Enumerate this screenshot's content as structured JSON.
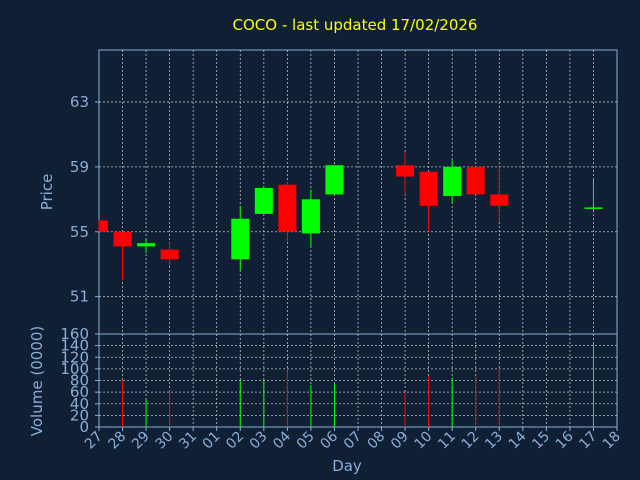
{
  "chart_data": [
    {
      "type": "candlestick",
      "title": "COCO - last updated 17/02/2026",
      "ylabel": "Price",
      "ylim": [
        48.7,
        66.2
      ],
      "yticks": [
        51,
        55,
        59,
        63
      ],
      "grid": true,
      "up_color": "#00ff00",
      "down_color": "#ff0000",
      "candles": [
        {
          "x": "27",
          "open": 55.7,
          "close": 55.0,
          "high": 55.7,
          "low": 55.0
        },
        {
          "x": "28",
          "open": 55.0,
          "close": 54.1,
          "high": 55.0,
          "low": 52.0
        },
        {
          "x": "29",
          "open": 54.1,
          "close": 54.3,
          "high": 54.5,
          "low": 53.7
        },
        {
          "x": "30",
          "open": 53.9,
          "close": 53.3,
          "high": 54.4,
          "low": 52.9
        },
        {
          "x": "02",
          "open": 53.3,
          "close": 55.8,
          "high": 56.6,
          "low": 52.6
        },
        {
          "x": "03",
          "open": 56.1,
          "close": 57.7,
          "high": 57.7,
          "low": 56.1
        },
        {
          "x": "04",
          "open": 57.9,
          "close": 55.0,
          "high": 58.1,
          "low": 54.4
        },
        {
          "x": "05",
          "open": 54.9,
          "close": 57.0,
          "high": 57.6,
          "low": 54.1
        },
        {
          "x": "06",
          "open": 57.3,
          "close": 59.1,
          "high": 59.1,
          "low": 57.3
        },
        {
          "x": "09",
          "open": 59.1,
          "close": 58.4,
          "high": 59.9,
          "low": 57.3
        },
        {
          "x": "10",
          "open": 58.7,
          "close": 56.6,
          "high": 58.7,
          "low": 55.0
        },
        {
          "x": "11",
          "open": 57.2,
          "close": 59.0,
          "high": 59.4,
          "low": 56.8
        },
        {
          "x": "12",
          "open": 59.0,
          "close": 57.3,
          "high": 59.0,
          "low": 57.3
        },
        {
          "x": "13",
          "open": 57.3,
          "close": 56.6,
          "high": 59.0,
          "low": 55.6
        },
        {
          "x": "17",
          "open": 56.5,
          "close": 56.5,
          "high": 58.2,
          "low": 56.2
        }
      ]
    },
    {
      "type": "bar",
      "ylabel": "Volume (0000)",
      "xlabel": "Day",
      "ylim": [
        0,
        160
      ],
      "yticks": [
        0,
        20,
        40,
        60,
        80,
        100,
        120,
        140,
        160
      ],
      "grid": true,
      "categories": [
        "27",
        "28",
        "29",
        "30",
        "31",
        "01",
        "02",
        "03",
        "04",
        "05",
        "06",
        "07",
        "08",
        "09",
        "10",
        "11",
        "12",
        "13",
        "14",
        "15",
        "16",
        "17",
        "18"
      ],
      "volumes": [
        {
          "x": "28",
          "value": 80,
          "direction": "down"
        },
        {
          "x": "29",
          "value": 47,
          "direction": "up"
        },
        {
          "x": "30",
          "value": 63,
          "direction": "down"
        },
        {
          "x": "02",
          "value": 80,
          "direction": "up"
        },
        {
          "x": "03",
          "value": 82,
          "direction": "up"
        },
        {
          "x": "04",
          "value": 97,
          "direction": "down"
        },
        {
          "x": "05",
          "value": 72,
          "direction": "up"
        },
        {
          "x": "06",
          "value": 74,
          "direction": "up"
        },
        {
          "x": "09",
          "value": 60,
          "direction": "down"
        },
        {
          "x": "10",
          "value": 88,
          "direction": "down"
        },
        {
          "x": "11",
          "value": 85,
          "direction": "up"
        },
        {
          "x": "12",
          "value": 87,
          "direction": "down"
        },
        {
          "x": "13",
          "value": 102,
          "direction": "down"
        },
        {
          "x": "17",
          "value": 143,
          "direction": "up"
        }
      ]
    }
  ]
}
